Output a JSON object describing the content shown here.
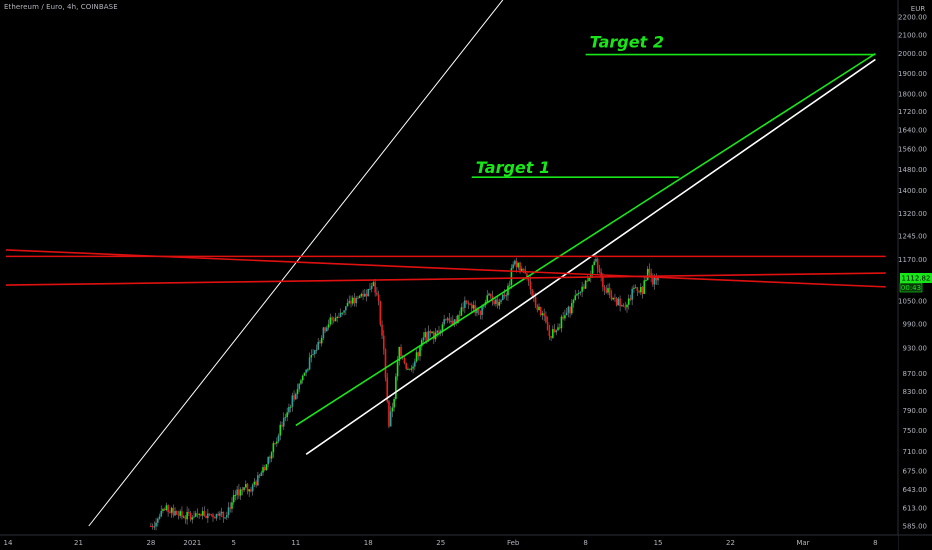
{
  "chart_data": {
    "type": "candlestick",
    "title": "Ethereum / Euro, 4h, COINBASE",
    "currency": "EUR",
    "price_axis": {
      "ticks": [
        2200,
        2100,
        2000,
        1900,
        1800,
        1720,
        1640,
        1560,
        1480,
        1400,
        1320,
        1245,
        1170,
        1050,
        990,
        930,
        870,
        830,
        790,
        750,
        710,
        675,
        643,
        613,
        585
      ],
      "tick_labels": [
        "2200.00",
        "2100.00",
        "2000.00",
        "1900.00",
        "1800.00",
        "1720.00",
        "1640.00",
        "1560.00",
        "1480.00",
        "1400.00",
        "1320.00",
        "1245.00",
        "1170.00",
        "1050.00",
        "990.00",
        "930.00",
        "870.00",
        "830.00",
        "790.00",
        "750.00",
        "710.00",
        "675.00",
        "643.00",
        "613.00",
        "585.00"
      ],
      "scale": "log"
    },
    "time_axis": {
      "tick_labels": [
        "14",
        "21",
        "28",
        "2021",
        "5",
        "11",
        "18",
        "25",
        "Feb",
        "8",
        "15",
        "22",
        "Mar",
        "8"
      ],
      "tick_dates": [
        "2020-12-14",
        "2020-12-21",
        "2020-12-28",
        "2021-01-01",
        "2021-01-05",
        "2021-01-11",
        "2021-01-18",
        "2021-01-25",
        "2021-02-01",
        "2021-02-08",
        "2021-02-15",
        "2021-02-22",
        "2021-03-01",
        "2021-03-08"
      ]
    },
    "last_price": "1112.82",
    "countdown": "00:43",
    "annotations": [
      {
        "text": "Target 1",
        "price": 1450
      },
      {
        "text": "Target 2",
        "price": 1995
      }
    ],
    "trend_lines": [
      {
        "color": "white",
        "thin": true,
        "from": {
          "date": "2020-12-22",
          "price": 585
        },
        "to": {
          "date": "2021-01-31",
          "price": 2300
        }
      },
      {
        "color": "white",
        "thin": false,
        "from": {
          "date": "2021-01-12",
          "price": 705
        },
        "to": {
          "date": "2021-03-08",
          "price": 1970
        }
      },
      {
        "color": "green",
        "thin": false,
        "from": {
          "date": "2021-01-11",
          "price": 760
        },
        "to": {
          "date": "2021-03-08",
          "price": 2000
        }
      },
      {
        "color": "red",
        "thin": false,
        "from": {
          "date": "2020-12-14",
          "price": 1180
        },
        "to": {
          "date": "2021-03-09",
          "price": 1180
        }
      },
      {
        "color": "red",
        "thin": false,
        "from": {
          "date": "2020-12-14",
          "price": 1200
        },
        "to": {
          "date": "2021-03-09",
          "price": 1090
        }
      },
      {
        "color": "red",
        "thin": false,
        "from": {
          "date": "2020-12-14",
          "price": 1095
        },
        "to": {
          "date": "2021-03-09",
          "price": 1130
        }
      },
      {
        "color": "green",
        "thin": false,
        "from": {
          "date": "2021-02-08",
          "price": 1995
        },
        "to": {
          "date": "2021-03-08",
          "price": 1995
        }
      },
      {
        "color": "green",
        "thin": false,
        "from": {
          "date": "2021-01-28",
          "price": 1450
        },
        "to": {
          "date": "2021-02-17",
          "price": 1450
        }
      }
    ],
    "colors": {
      "up": "#26a69a",
      "up_bright": "#19e619",
      "down": "#ef1c1c",
      "wick": "#787878",
      "green_line": "#19e619",
      "red_line": "#e01010",
      "white_line": "#ffffff",
      "last_price_bg": "#19e619"
    }
  }
}
